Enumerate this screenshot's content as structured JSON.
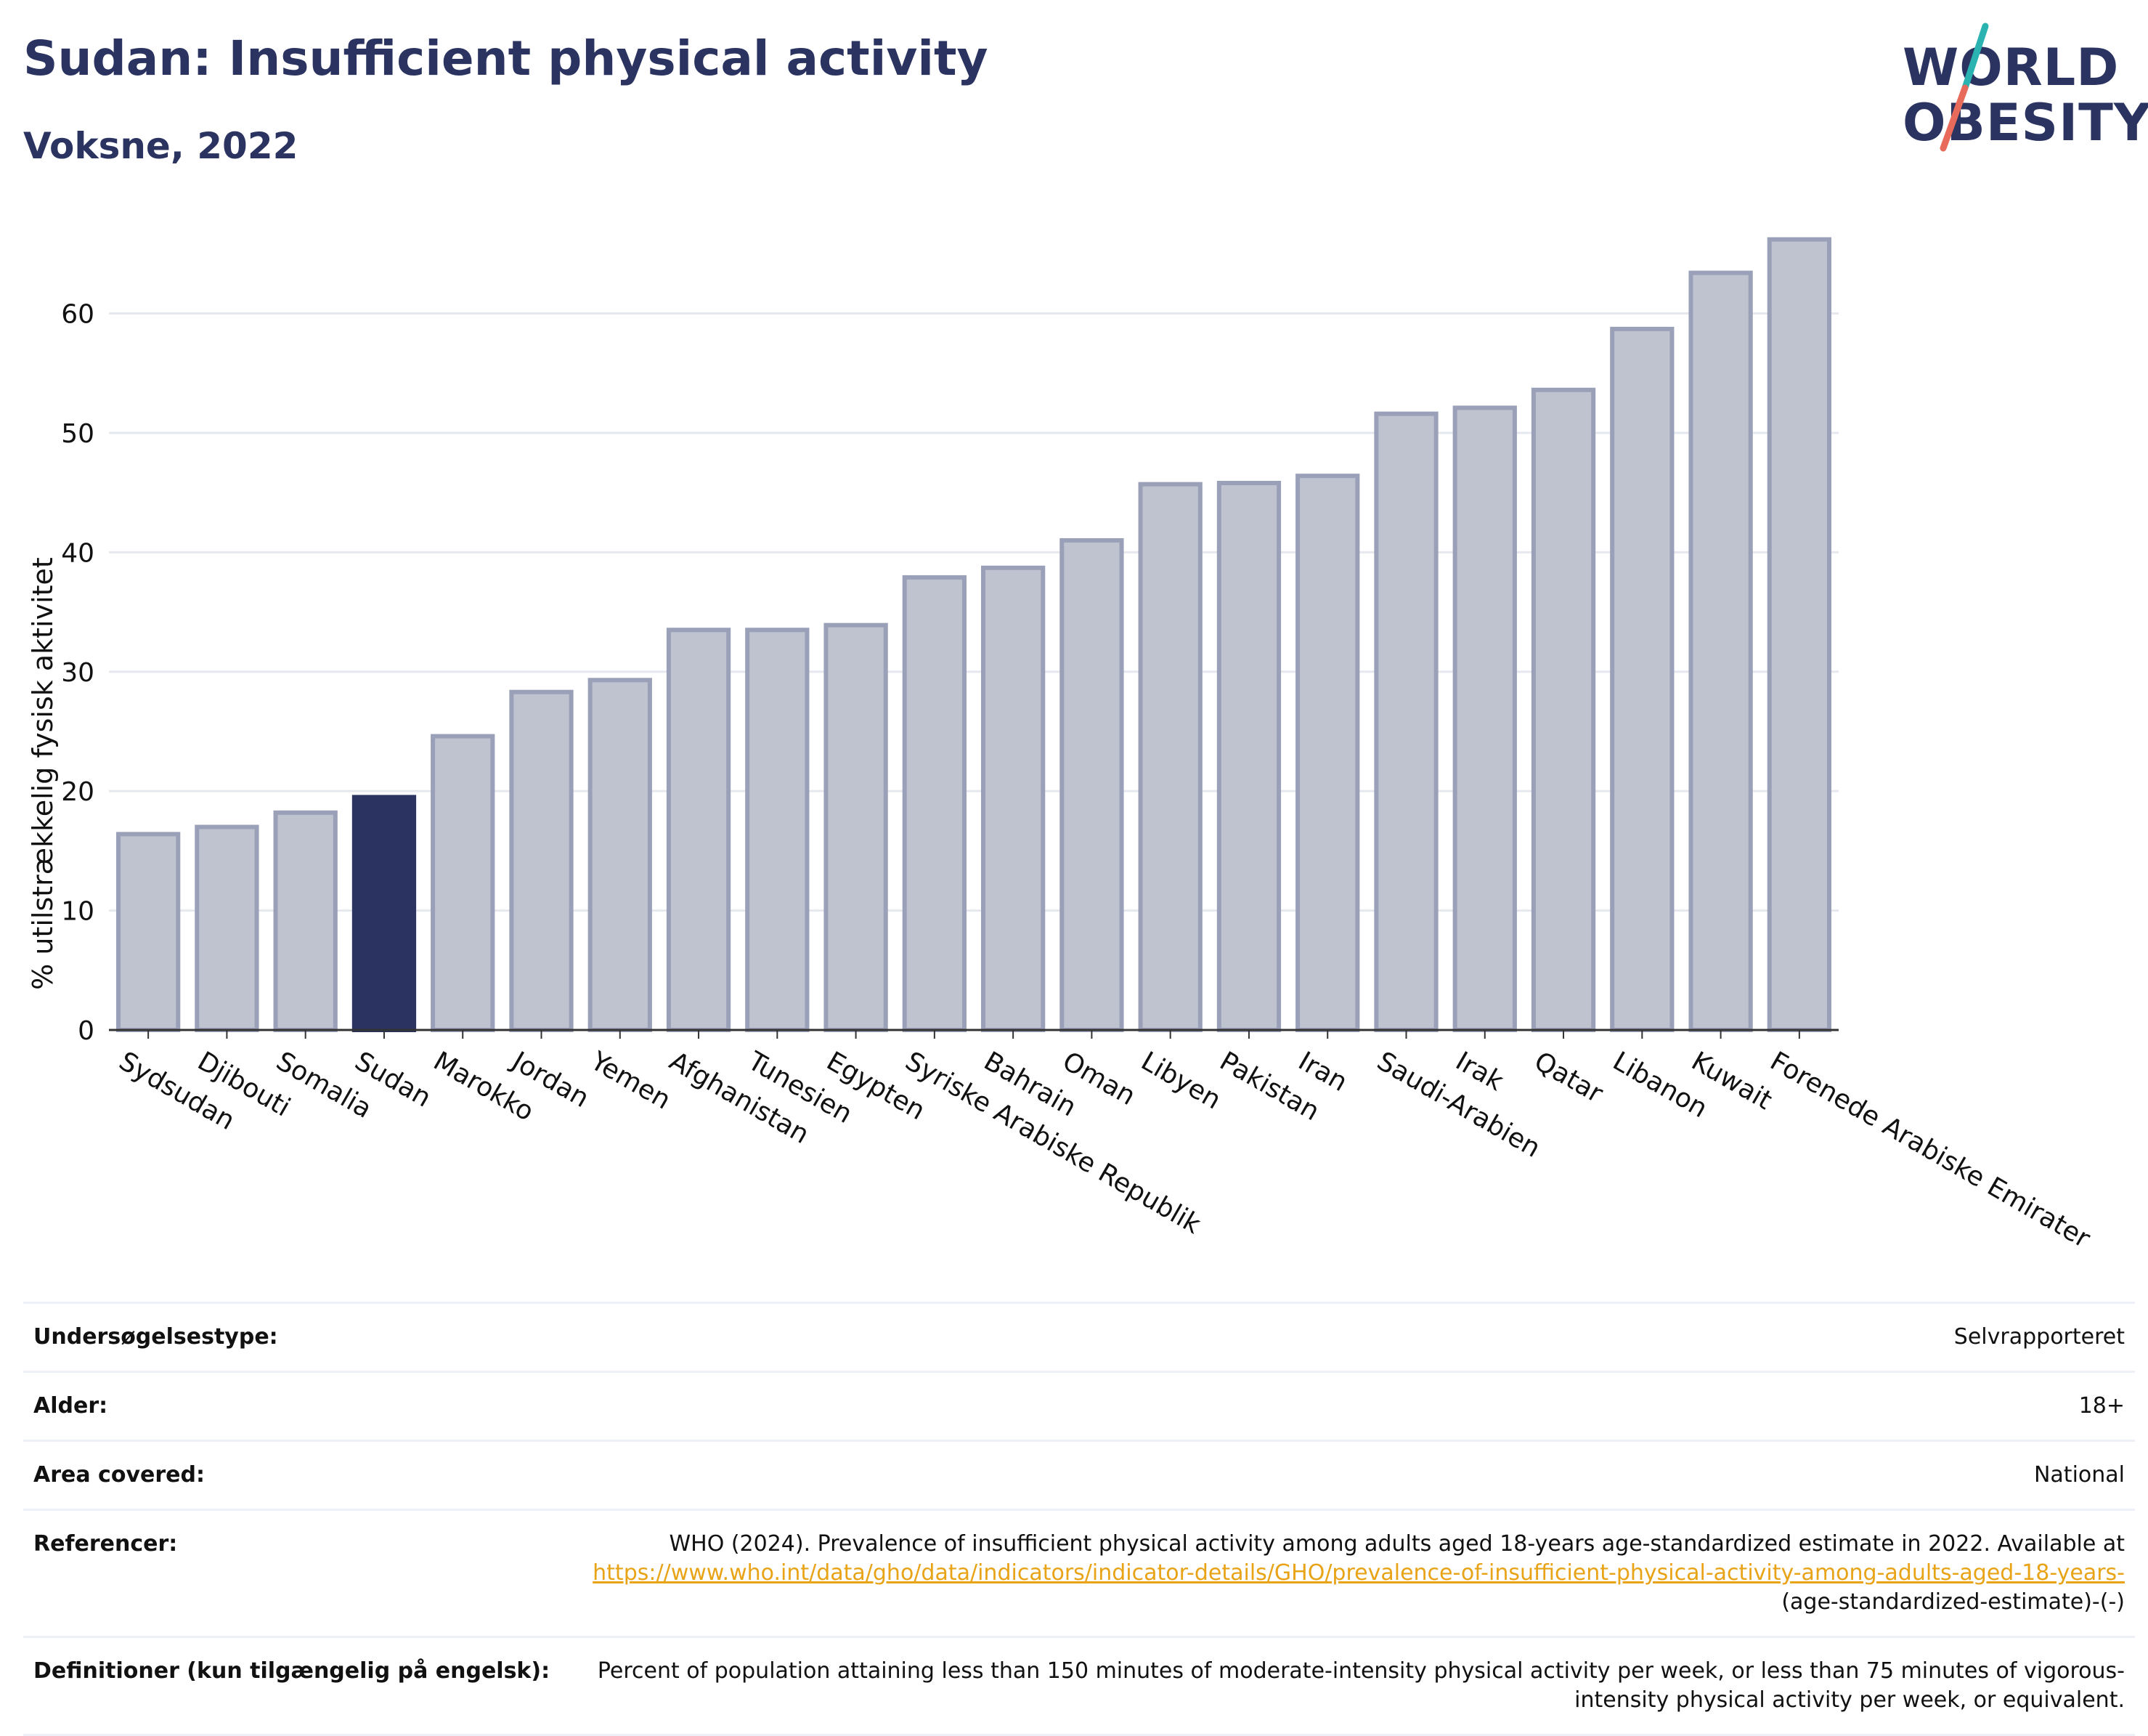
{
  "header": {
    "title": "Sudan: Insufficient physical activity",
    "subtitle": "Voksne, 2022"
  },
  "logo": {
    "line1": "WORLD",
    "line2": "OBESITY",
    "colors": {
      "text": "#2b3461",
      "slash_top": "#2bb3b1",
      "slash_bottom": "#e86a5a"
    }
  },
  "colors": {
    "highlight_bar": "#2b3461",
    "other_bar_fill": "#bfc3d0",
    "other_bar_stroke": "#9aa0b8",
    "grid": "#e6e8ef",
    "link": "#e8a317"
  },
  "chart_data": {
    "type": "bar",
    "ylabel": "% utilstrækkelig fysisk aktivitet",
    "ylim": [
      0,
      68
    ],
    "yticks": [
      0,
      10,
      20,
      30,
      40,
      50,
      60
    ],
    "grid": true,
    "highlight": "Sudan",
    "categories": [
      "Sydsudan",
      "Djibouti",
      "Somalia",
      "Sudan",
      "Marokko",
      "Jordan",
      "Yemen",
      "Afghanistan",
      "Tunesien",
      "Egypten",
      "Syriske Arabiske Republik",
      "Bahrain",
      "Oman",
      "Libyen",
      "Pakistan",
      "Iran",
      "Saudi-Arabien",
      "Irak",
      "Qatar",
      "Libanon",
      "Kuwait",
      "Forenede Arabiske Emirater"
    ],
    "values": [
      16.4,
      17.0,
      18.2,
      19.5,
      24.6,
      28.3,
      29.3,
      33.5,
      33.5,
      33.9,
      37.9,
      38.7,
      41.0,
      45.7,
      45.8,
      46.4,
      51.6,
      52.1,
      53.6,
      58.7,
      63.4,
      66.2
    ]
  },
  "info": [
    {
      "key": "Undersøgelsestype:",
      "value": "Selvrapporteret"
    },
    {
      "key": "Alder:",
      "value": "18+"
    },
    {
      "key": "Area covered:",
      "value": "National"
    },
    {
      "key": "Referencer:",
      "value_text": "WHO (2024). Prevalence of insufficient physical activity among adults aged 18-years age-standardized estimate in 2022. Available at",
      "link_text": "https://www.who.int/data/gho/data/indicators/indicator-details/GHO/prevalence-of-insufficient-physical-activity-among-adults-aged-18-years-",
      "value_suffix": "(age-standardized-estimate)-(-)"
    },
    {
      "key": "Definitioner (kun tilgængelig på engelsk):",
      "value": "Percent of population attaining less than 150 minutes of moderate-intensity physical activity per week, or less than 75 minutes of vigorous-intensity physical activity per week, or equivalent."
    }
  ]
}
